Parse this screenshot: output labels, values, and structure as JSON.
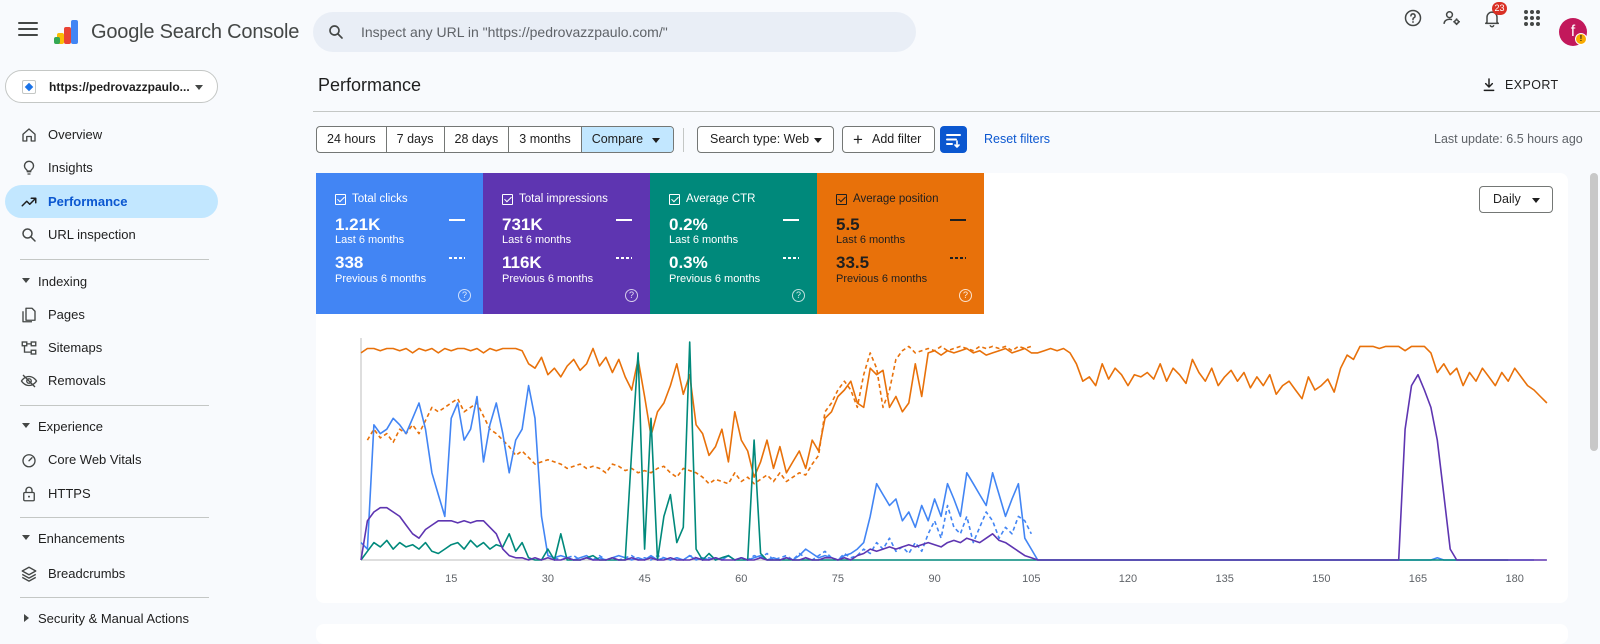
{
  "header": {
    "app_title": "Google Search Console",
    "search_placeholder": "Inspect any URL in \"https://pedrovazzpaulo.com/\"",
    "notification_count": "23",
    "avatar_initial": "f",
    "icons": [
      "menu-icon",
      "help-icon",
      "manage-users-icon",
      "notifications-icon",
      "apps-grid-icon"
    ]
  },
  "property": {
    "label": "https://pedrovazzpaulo..."
  },
  "sidebar": {
    "items": [
      {
        "label": "Overview",
        "icon": "home-icon"
      },
      {
        "label": "Insights",
        "icon": "lightbulb-icon"
      },
      {
        "label": "Performance",
        "icon": "trending-up-icon",
        "active": true
      },
      {
        "label": "URL inspection",
        "icon": "search-icon"
      }
    ],
    "sections": [
      {
        "label": "Indexing",
        "items": [
          {
            "label": "Pages",
            "icon": "pages-icon"
          },
          {
            "label": "Sitemaps",
            "icon": "sitemap-icon"
          },
          {
            "label": "Removals",
            "icon": "visibility-off-icon"
          }
        ]
      },
      {
        "label": "Experience",
        "items": [
          {
            "label": "Core Web Vitals",
            "icon": "speed-icon"
          },
          {
            "label": "HTTPS",
            "icon": "lock-icon"
          }
        ]
      },
      {
        "label": "Enhancements",
        "items": [
          {
            "label": "Breadcrumbs",
            "icon": "layers-icon"
          }
        ]
      },
      {
        "label": "Security & Manual Actions",
        "items": []
      }
    ]
  },
  "main": {
    "title": "Performance",
    "export_label": "EXPORT",
    "ranges": [
      "24 hours",
      "7 days",
      "28 days",
      "3 months",
      "Compare"
    ],
    "search_type": "Search type: Web",
    "add_filter": "Add filter",
    "reset_filters": "Reset filters",
    "last_update": "Last update: 6.5 hours ago",
    "granularity": "Daily",
    "metrics": [
      {
        "label": "Total clicks",
        "current": "1.21K",
        "current_period": "Last 6 months",
        "previous": "338",
        "previous_period": "Previous 6 months",
        "color": "#4285f4"
      },
      {
        "label": "Total impressions",
        "current": "731K",
        "current_period": "Last 6 months",
        "previous": "116K",
        "previous_period": "Previous 6 months",
        "color": "#5e35b1"
      },
      {
        "label": "Average CTR",
        "current": "0.2%",
        "current_period": "Last 6 months",
        "previous": "0.3%",
        "previous_period": "Previous 6 months",
        "color": "#00897b"
      },
      {
        "label": "Average position",
        "current": "5.5",
        "current_period": "Last 6 months",
        "previous": "33.5",
        "previous_period": "Previous 6 months",
        "color": "#e8710a"
      }
    ],
    "help_glyph": "?"
  },
  "chart_data": {
    "type": "line",
    "x_ticks": [
      "15",
      "30",
      "45",
      "60",
      "75",
      "90",
      "105",
      "120",
      "135",
      "150",
      "165",
      "180"
    ],
    "x_range": [
      1,
      183
    ],
    "y_range": [
      0,
      100
    ],
    "series": [
      {
        "name": "Average position",
        "color": "#e8710a",
        "style": "solid",
        "values": [
          95,
          97,
          97,
          96,
          97,
          97,
          96,
          97,
          95,
          97,
          96,
          97,
          95,
          97,
          96,
          97,
          97,
          96,
          97,
          95,
          97,
          96,
          97,
          97,
          97,
          96,
          90,
          88,
          93,
          85,
          88,
          84,
          89,
          92,
          87,
          90,
          97,
          89,
          93,
          86,
          92,
          84,
          78,
          92,
          75,
          57,
          68,
          72,
          80,
          90,
          76,
          85,
          62,
          58,
          48,
          52,
          60,
          45,
          68,
          55,
          50,
          38,
          45,
          55,
          42,
          52,
          40,
          45,
          50,
          42,
          55,
          50,
          65,
          68,
          75,
          78,
          82,
          72,
          70,
          88,
          85,
          87,
          70,
          75,
          68,
          72,
          90,
          75,
          95,
          96,
          94,
          96,
          95,
          96,
          97,
          95,
          96,
          94,
          95,
          96,
          97,
          95,
          96,
          97,
          95,
          95,
          96,
          97,
          96,
          97,
          95,
          90,
          82,
          84,
          80,
          90,
          83,
          88,
          85,
          80,
          85,
          84,
          86,
          83,
          90,
          82,
          88,
          85,
          81,
          92,
          86,
          82,
          88,
          80,
          84,
          87,
          82,
          86,
          79,
          84,
          80,
          85,
          76,
          80,
          82,
          78,
          74,
          84,
          78,
          80,
          83,
          77,
          88,
          94,
          92,
          98,
          98,
          98,
          97,
          98,
          98,
          98,
          96,
          98,
          98,
          98,
          95,
          86,
          90,
          85,
          88,
          80,
          86,
          82,
          88,
          84,
          80,
          86,
          82,
          88,
          84,
          80,
          78,
          75,
          72
        ]
      },
      {
        "name": "Average position (previous)",
        "color": "#e8710a",
        "style": "dashed",
        "values": [
          null,
          55,
          60,
          56,
          58,
          54,
          60,
          58,
          62,
          58,
          64,
          70,
          68,
          70,
          72,
          74,
          68,
          70,
          72,
          66,
          60,
          58,
          55,
          52,
          48,
          50,
          47,
          44,
          45,
          46,
          45,
          44,
          42,
          43,
          44,
          42,
          43,
          42,
          40,
          44,
          43,
          41,
          42,
          40,
          41,
          40,
          42,
          43,
          40,
          38,
          42,
          41,
          40,
          38,
          35,
          37,
          36,
          35,
          40,
          36,
          38,
          35,
          37,
          39,
          36,
          40,
          36,
          38,
          40,
          39,
          44,
          48,
          68,
          72,
          78,
          82,
          78,
          70,
          85,
          95,
          88,
          70,
          78,
          92,
          96,
          98,
          95,
          96,
          97,
          96,
          98,
          96,
          97,
          98,
          97,
          96,
          98,
          97,
          98,
          97,
          98,
          96,
          98,
          97,
          98,
          null
        ]
      },
      {
        "name": "Total clicks",
        "color": "#4285f4",
        "style": "solid",
        "values": [
          8,
          5,
          62,
          58,
          60,
          65,
          62,
          58,
          65,
          72,
          60,
          40,
          30,
          20,
          65,
          72,
          55,
          60,
          75,
          45,
          62,
          72,
          58,
          40,
          55,
          60,
          80,
          65,
          20,
          2,
          1,
          2,
          1,
          0,
          1,
          2,
          0,
          1,
          0,
          1,
          2,
          1,
          0,
          1,
          0,
          2,
          0,
          1,
          0,
          1,
          0,
          2,
          0,
          1,
          0,
          1,
          0,
          2,
          0,
          1,
          0,
          1,
          2,
          0,
          1,
          0,
          1,
          0,
          2,
          5,
          3,
          1,
          2,
          1,
          0,
          2,
          3,
          5,
          8,
          20,
          35,
          30,
          25,
          28,
          18,
          22,
          15,
          25,
          18,
          28,
          20,
          35,
          28,
          20,
          40,
          35,
          30,
          25,
          40,
          30,
          20,
          28,
          35,
          10,
          5,
          0,
          0,
          0,
          0,
          0,
          0,
          0,
          0,
          0,
          0,
          0,
          0,
          0,
          0,
          0,
          0,
          0,
          0,
          0,
          0,
          0,
          0,
          0,
          0,
          0,
          0,
          0,
          0,
          0,
          0,
          0,
          0,
          0,
          0,
          0,
          0,
          0,
          0,
          0,
          0,
          0,
          0,
          0,
          0,
          0,
          0,
          0,
          0,
          0,
          0,
          0,
          0,
          0,
          0,
          0,
          0,
          0,
          0,
          0,
          0,
          0,
          0,
          1,
          0,
          0,
          0,
          0,
          0,
          0,
          0,
          0,
          0,
          0,
          0,
          0,
          0,
          0,
          0
        ]
      },
      {
        "name": "Total clicks (previous)",
        "color": "#4285f4",
        "style": "dashed",
        "values": [
          null,
          null,
          null,
          null,
          null,
          null,
          null,
          null,
          null,
          null,
          null,
          null,
          null,
          null,
          null,
          null,
          null,
          null,
          null,
          null,
          null,
          null,
          null,
          null,
          null,
          null,
          null,
          null,
          null,
          2,
          1,
          0,
          1,
          2,
          0,
          1,
          0,
          2,
          0,
          1,
          0,
          1,
          2,
          0,
          1,
          0,
          2,
          1,
          0,
          1,
          0,
          2,
          1,
          0,
          1,
          0,
          1,
          2,
          0,
          1,
          0,
          2,
          1,
          3,
          0,
          1,
          2,
          0,
          3,
          1,
          0,
          2,
          4,
          1,
          0,
          3,
          1,
          2,
          5,
          3,
          8,
          5,
          10,
          4,
          6,
          3,
          8,
          4,
          12,
          18,
          10,
          25,
          15,
          12,
          20,
          8,
          15,
          22,
          18,
          10,
          15,
          12,
          20,
          18,
          12,
          null
        ]
      },
      {
        "name": "Total impressions",
        "color": "#5e35b1",
        "style": "solid",
        "values": [
          0,
          18,
          22,
          24,
          24,
          22,
          20,
          16,
          12,
          10,
          14,
          16,
          18,
          18,
          18,
          17,
          18,
          17,
          18,
          18,
          15,
          12,
          5,
          2,
          1,
          1,
          0,
          1,
          0,
          1,
          0,
          0,
          1,
          0,
          0,
          1,
          0,
          0,
          0,
          1,
          0,
          0,
          1,
          0,
          0,
          1,
          0,
          0,
          1,
          0,
          0,
          0,
          1,
          0,
          0,
          1,
          0,
          0,
          0,
          1,
          0,
          0,
          1,
          0,
          0,
          0,
          1,
          0,
          0,
          1,
          0,
          0,
          1,
          1,
          0,
          1,
          0,
          2,
          3,
          5,
          4,
          5,
          6,
          5,
          6,
          7,
          6,
          7,
          8,
          7,
          6,
          8,
          9,
          8,
          10,
          9,
          8,
          10,
          12,
          9,
          8,
          6,
          4,
          2,
          1,
          0,
          0,
          0,
          0,
          0,
          0,
          0,
          0,
          0,
          0,
          0,
          0,
          0,
          0,
          0,
          0,
          0,
          0,
          0,
          0,
          0,
          0,
          0,
          0,
          0,
          0,
          0,
          0,
          0,
          0,
          0,
          0,
          0,
          0,
          0,
          0,
          0,
          0,
          0,
          0,
          0,
          0,
          0,
          0,
          0,
          0,
          0,
          0,
          0,
          0,
          0,
          0,
          0,
          0,
          0,
          0,
          0,
          60,
          80,
          85,
          78,
          70,
          55,
          30,
          5,
          0,
          0,
          0,
          0,
          0,
          0,
          0,
          0,
          0,
          0,
          0,
          0,
          0,
          0,
          0
        ]
      },
      {
        "name": "Average CTR",
        "color": "#00897b",
        "style": "solid",
        "values": [
          0,
          4,
          8,
          6,
          9,
          5,
          8,
          6,
          7,
          5,
          8,
          4,
          3,
          5,
          7,
          8,
          5,
          9,
          6,
          8,
          5,
          7,
          6,
          12,
          4,
          8,
          1,
          0,
          0,
          5,
          0,
          12,
          0,
          0,
          0,
          1,
          2,
          0,
          0,
          0,
          0,
          0,
          50,
          95,
          5,
          65,
          0,
          20,
          30,
          8,
          15,
          100,
          5,
          0,
          3,
          0,
          1,
          2,
          0,
          0,
          0,
          55,
          3,
          0,
          0,
          0,
          0,
          0,
          0,
          0,
          0,
          0,
          0,
          0,
          0,
          0,
          0,
          0,
          0,
          0,
          0,
          0,
          0,
          0,
          0,
          0,
          0,
          0,
          0,
          0,
          0,
          0,
          0,
          0,
          0,
          0,
          0,
          0,
          0,
          0,
          0,
          0,
          0,
          0,
          0,
          0,
          0,
          0,
          0,
          0,
          0,
          0,
          0,
          0,
          0,
          0,
          0,
          0,
          0,
          0,
          0,
          0,
          0,
          0,
          0,
          0,
          0,
          0,
          0,
          0,
          0,
          0,
          0,
          0,
          0,
          0,
          0,
          0,
          0,
          0,
          0,
          0,
          0,
          0,
          0,
          0,
          0,
          0,
          0,
          0,
          0,
          0,
          0,
          0,
          0,
          0,
          0,
          0,
          0,
          0,
          0,
          0,
          0,
          0,
          0,
          0,
          0,
          0,
          0,
          0,
          0,
          0,
          0,
          0,
          0,
          0,
          0,
          0,
          0
        ]
      },
      {
        "name": "Average CTR (previous)",
        "color": "#00897b",
        "style": "dashed",
        "values": [
          null,
          null,
          null,
          null,
          null,
          null,
          null,
          null,
          null,
          null,
          null,
          null,
          null,
          null,
          null,
          null,
          null,
          null,
          null,
          null,
          null,
          null,
          null,
          null,
          null,
          null,
          null,
          null,
          null,
          null,
          null,
          null,
          null,
          null,
          null,
          null,
          null,
          null,
          null,
          null,
          null,
          null,
          null,
          null,
          null,
          null,
          null,
          null,
          null,
          null,
          null,
          null,
          null,
          null,
          null,
          null,
          null,
          null,
          null,
          null,
          null,
          null,
          null,
          null,
          null,
          null,
          null,
          null,
          null,
          null,
          null,
          null,
          null,
          null,
          null,
          null,
          null,
          null,
          null,
          null,
          null,
          null,
          null,
          null,
          null,
          null,
          null,
          null,
          null,
          null,
          null,
          null,
          null,
          null,
          null,
          null,
          null,
          null,
          null,
          null,
          null,
          null,
          null,
          null,
          null,
          null
        ]
      }
    ]
  }
}
